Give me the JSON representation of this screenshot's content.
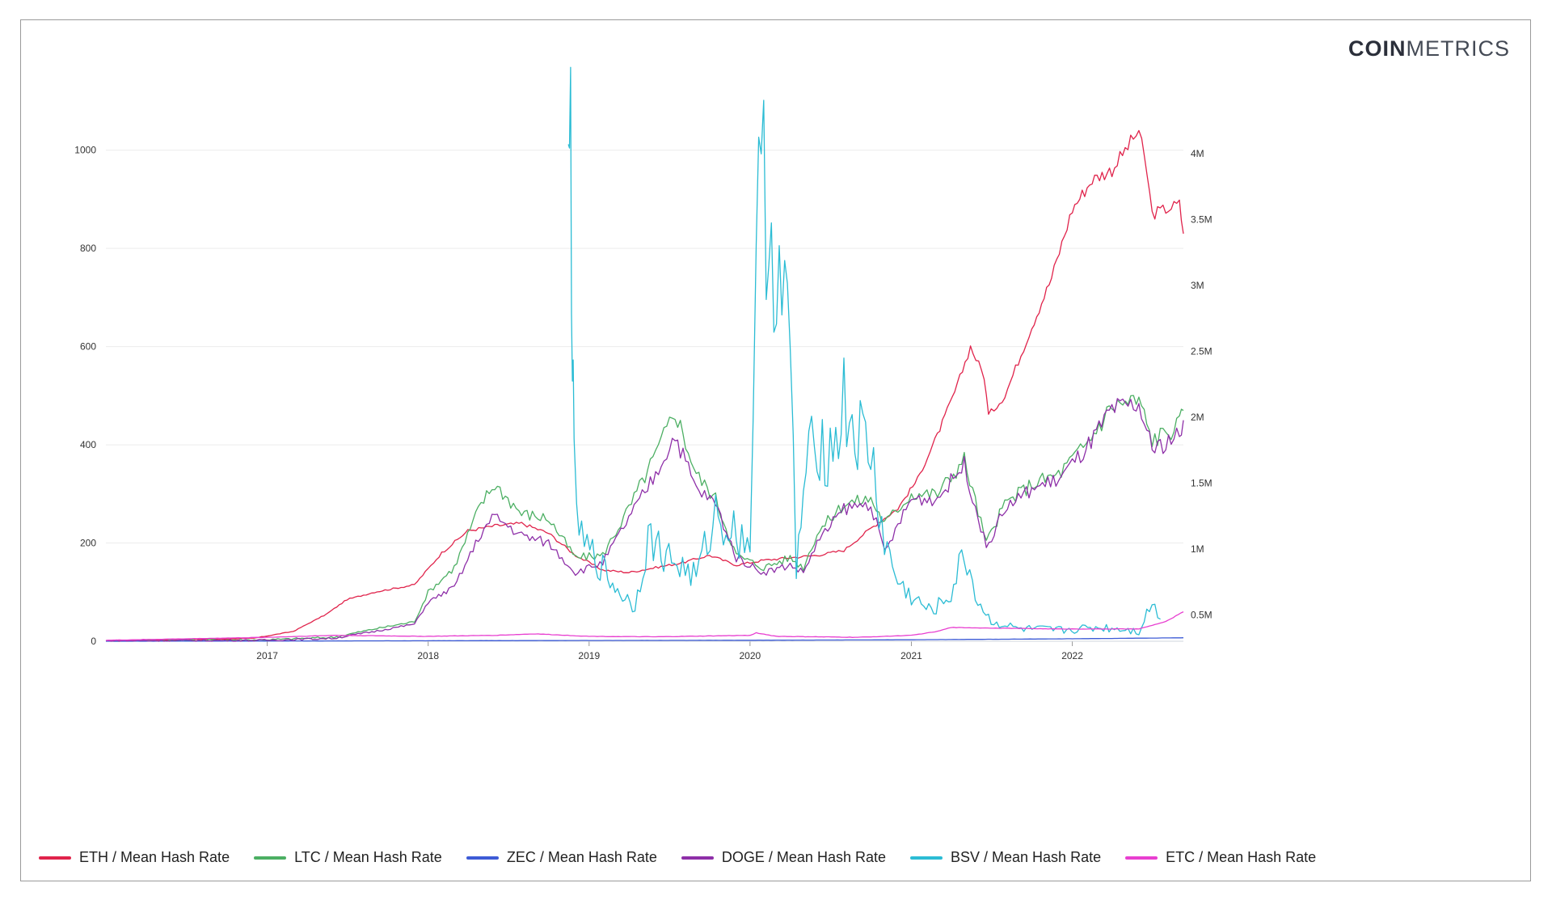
{
  "brand": {
    "bold": "COIN",
    "light": "METRICS"
  },
  "chart_data": {
    "type": "line",
    "title": "",
    "xlabel": "",
    "ylabel": "",
    "x_range": [
      "2016-01-01",
      "2022-09-10"
    ],
    "x_ticks": [
      "2017",
      "2018",
      "2019",
      "2020",
      "2021",
      "2022"
    ],
    "y_left": {
      "range": [
        0,
        1100
      ],
      "ticks": [
        0,
        200,
        400,
        600,
        800,
        1000
      ],
      "tick_labels": [
        "0",
        "200",
        "400",
        "600",
        "800",
        "1000"
      ]
    },
    "y_right": {
      "range": [
        300000,
        4400000
      ],
      "ticks": [
        500000,
        1000000,
        1500000,
        2000000,
        2500000,
        3000000,
        3500000,
        4000000
      ],
      "tick_labels": [
        "0.5M",
        "1M",
        "1.5M",
        "2M",
        "2.5M",
        "3M",
        "3.5M",
        "4M"
      ]
    },
    "grid": true,
    "legend_position": "bottom-left",
    "series": [
      {
        "name": "ETH / Mean Hash Rate",
        "color": "#e0234b",
        "axis": "left",
        "points": [
          [
            "2016-01-01",
            1
          ],
          [
            "2016-07-01",
            3
          ],
          [
            "2016-12-01",
            6
          ],
          [
            "2017-03-01",
            20
          ],
          [
            "2017-05-15",
            55
          ],
          [
            "2017-07-01",
            85
          ],
          [
            "2017-09-01",
            100
          ],
          [
            "2017-12-01",
            115
          ],
          [
            "2018-02-01",
            180
          ],
          [
            "2018-04-01",
            225
          ],
          [
            "2018-06-01",
            235
          ],
          [
            "2018-08-01",
            240
          ],
          [
            "2018-10-01",
            220
          ],
          [
            "2018-12-01",
            175
          ],
          [
            "2019-02-01",
            145
          ],
          [
            "2019-04-01",
            140
          ],
          [
            "2019-06-01",
            150
          ],
          [
            "2019-08-01",
            160
          ],
          [
            "2019-10-01",
            175
          ],
          [
            "2019-12-01",
            155
          ],
          [
            "2020-02-01",
            165
          ],
          [
            "2020-04-01",
            170
          ],
          [
            "2020-06-01",
            175
          ],
          [
            "2020-08-01",
            185
          ],
          [
            "2020-10-01",
            230
          ],
          [
            "2020-12-01",
            270
          ],
          [
            "2021-01-15",
            330
          ],
          [
            "2021-03-01",
            420
          ],
          [
            "2021-04-15",
            520
          ],
          [
            "2021-05-15",
            600
          ],
          [
            "2021-06-15",
            540
          ],
          [
            "2021-06-25",
            460
          ],
          [
            "2021-08-01",
            500
          ],
          [
            "2021-10-01",
            640
          ],
          [
            "2021-11-15",
            740
          ],
          [
            "2022-01-01",
            880
          ],
          [
            "2022-02-15",
            940
          ],
          [
            "2022-04-01",
            960
          ],
          [
            "2022-05-01",
            1000
          ],
          [
            "2022-06-01",
            1040
          ],
          [
            "2022-06-20",
            950
          ],
          [
            "2022-07-01",
            870
          ],
          [
            "2022-08-01",
            880
          ],
          [
            "2022-09-01",
            890
          ],
          [
            "2022-09-10",
            830
          ]
        ]
      },
      {
        "name": "LTC / Mean Hash Rate",
        "color": "#4caf63",
        "axis": "left",
        "points": [
          [
            "2016-01-01",
            1
          ],
          [
            "2017-01-01",
            3
          ],
          [
            "2017-06-01",
            8
          ],
          [
            "2017-09-01",
            25
          ],
          [
            "2017-12-01",
            40
          ],
          [
            "2018-01-01",
            100
          ],
          [
            "2018-03-01",
            150
          ],
          [
            "2018-05-01",
            280
          ],
          [
            "2018-06-01",
            320
          ],
          [
            "2018-07-01",
            290
          ],
          [
            "2018-08-01",
            260
          ],
          [
            "2018-10-01",
            250
          ],
          [
            "2018-12-01",
            170
          ],
          [
            "2019-02-01",
            175
          ],
          [
            "2019-04-01",
            270
          ],
          [
            "2019-06-01",
            380
          ],
          [
            "2019-07-15",
            470
          ],
          [
            "2019-09-01",
            340
          ],
          [
            "2019-10-15",
            290
          ],
          [
            "2019-12-01",
            175
          ],
          [
            "2020-02-01",
            150
          ],
          [
            "2020-04-01",
            170
          ],
          [
            "2020-05-01",
            150
          ],
          [
            "2020-06-01",
            220
          ],
          [
            "2020-08-01",
            280
          ],
          [
            "2020-10-01",
            290
          ],
          [
            "2020-11-01",
            240
          ],
          [
            "2021-01-01",
            300
          ],
          [
            "2021-03-01",
            300
          ],
          [
            "2021-05-01",
            370
          ],
          [
            "2021-06-20",
            200
          ],
          [
            "2021-08-01",
            280
          ],
          [
            "2021-10-01",
            320
          ],
          [
            "2021-12-01",
            340
          ],
          [
            "2022-02-01",
            400
          ],
          [
            "2022-04-01",
            480
          ],
          [
            "2022-06-01",
            490
          ],
          [
            "2022-07-01",
            410
          ],
          [
            "2022-09-01",
            440
          ],
          [
            "2022-09-10",
            470
          ]
        ]
      },
      {
        "name": "ZEC / Mean Hash Rate",
        "color": "#3d5bd6",
        "axis": "left",
        "points": [
          [
            "2016-01-01",
            0
          ],
          [
            "2018-01-01",
            1
          ],
          [
            "2020-01-01",
            2
          ],
          [
            "2021-01-01",
            3
          ],
          [
            "2022-01-01",
            5
          ],
          [
            "2022-09-10",
            7
          ]
        ]
      },
      {
        "name": "DOGE / Mean Hash Rate",
        "color": "#8e2fa8",
        "axis": "left",
        "points": [
          [
            "2016-01-01",
            1
          ],
          [
            "2017-01-01",
            2
          ],
          [
            "2017-06-01",
            6
          ],
          [
            "2017-09-01",
            20
          ],
          [
            "2017-12-01",
            35
          ],
          [
            "2018-01-01",
            80
          ],
          [
            "2018-03-01",
            110
          ],
          [
            "2018-05-01",
            220
          ],
          [
            "2018-06-01",
            255
          ],
          [
            "2018-07-01",
            235
          ],
          [
            "2018-08-01",
            215
          ],
          [
            "2018-10-01",
            200
          ],
          [
            "2018-12-01",
            140
          ],
          [
            "2019-02-01",
            160
          ],
          [
            "2019-04-01",
            250
          ],
          [
            "2019-06-01",
            340
          ],
          [
            "2019-07-15",
            420
          ],
          [
            "2019-09-01",
            310
          ],
          [
            "2019-10-15",
            280
          ],
          [
            "2019-12-01",
            170
          ],
          [
            "2020-02-01",
            140
          ],
          [
            "2020-04-01",
            155
          ],
          [
            "2020-05-01",
            140
          ],
          [
            "2020-06-01",
            200
          ],
          [
            "2020-08-01",
            270
          ],
          [
            "2020-10-01",
            280
          ],
          [
            "2020-11-01",
            180
          ],
          [
            "2021-01-01",
            290
          ],
          [
            "2021-03-01",
            290
          ],
          [
            "2021-05-01",
            360
          ],
          [
            "2021-06-20",
            190
          ],
          [
            "2021-08-01",
            270
          ],
          [
            "2021-10-01",
            310
          ],
          [
            "2021-12-01",
            330
          ],
          [
            "2022-02-01",
            390
          ],
          [
            "2022-04-01",
            470
          ],
          [
            "2022-06-01",
            480
          ],
          [
            "2022-07-01",
            390
          ],
          [
            "2022-09-01",
            420
          ],
          [
            "2022-09-10",
            450
          ]
        ]
      },
      {
        "name": "BSV / Mean Hash Rate",
        "color": "#2bbcd4",
        "axis": "left",
        "points": [
          [
            "2018-11-15",
            880
          ],
          [
            "2018-11-20",
            1065
          ],
          [
            "2018-11-24",
            600
          ],
          [
            "2018-11-28",
            340
          ],
          [
            "2018-12-15",
            200
          ],
          [
            "2019-01-15",
            170
          ],
          [
            "2019-03-01",
            110
          ],
          [
            "2019-04-15",
            70
          ],
          [
            "2019-05-15",
            210
          ],
          [
            "2019-07-01",
            170
          ],
          [
            "2019-09-01",
            130
          ],
          [
            "2019-10-15",
            260
          ],
          [
            "2019-12-01",
            220
          ],
          [
            "2020-01-01",
            200
          ],
          [
            "2020-01-15",
            840
          ],
          [
            "2020-02-01",
            920
          ],
          [
            "2020-03-01",
            760
          ],
          [
            "2020-04-01",
            600
          ],
          [
            "2020-04-15",
            140
          ],
          [
            "2020-05-01",
            300
          ],
          [
            "2020-06-01",
            430
          ],
          [
            "2020-07-01",
            380
          ],
          [
            "2020-08-01",
            480
          ],
          [
            "2020-09-01",
            420
          ],
          [
            "2020-10-01",
            380
          ],
          [
            "2020-11-01",
            200
          ],
          [
            "2020-12-01",
            120
          ],
          [
            "2021-01-01",
            90
          ],
          [
            "2021-02-15",
            60
          ],
          [
            "2021-04-01",
            95
          ],
          [
            "2021-05-01",
            180
          ],
          [
            "2021-06-01",
            80
          ],
          [
            "2021-07-01",
            40
          ],
          [
            "2021-09-01",
            25
          ],
          [
            "2021-12-01",
            22
          ],
          [
            "2022-03-01",
            28
          ],
          [
            "2022-05-01",
            25
          ],
          [
            "2022-06-01",
            20
          ],
          [
            "2022-07-01",
            80
          ],
          [
            "2022-07-20",
            45
          ]
        ]
      },
      {
        "name": "ETC / Mean Hash Rate",
        "color": "#e83fd0",
        "axis": "left",
        "points": [
          [
            "2016-01-01",
            2
          ],
          [
            "2016-07-01",
            5
          ],
          [
            "2017-01-01",
            8
          ],
          [
            "2017-06-01",
            12
          ],
          [
            "2018-01-01",
            10
          ],
          [
            "2018-06-01",
            12
          ],
          [
            "2018-09-01",
            15
          ],
          [
            "2019-01-01",
            10
          ],
          [
            "2019-06-01",
            9
          ],
          [
            "2020-01-01",
            12
          ],
          [
            "2020-01-15",
            17
          ],
          [
            "2020-03-01",
            10
          ],
          [
            "2020-09-01",
            8
          ],
          [
            "2021-01-01",
            12
          ],
          [
            "2021-03-01",
            20
          ],
          [
            "2021-04-01",
            28
          ],
          [
            "2021-12-01",
            25
          ],
          [
            "2022-06-01",
            25
          ],
          [
            "2022-08-01",
            40
          ],
          [
            "2022-09-10",
            60
          ]
        ]
      }
    ]
  }
}
